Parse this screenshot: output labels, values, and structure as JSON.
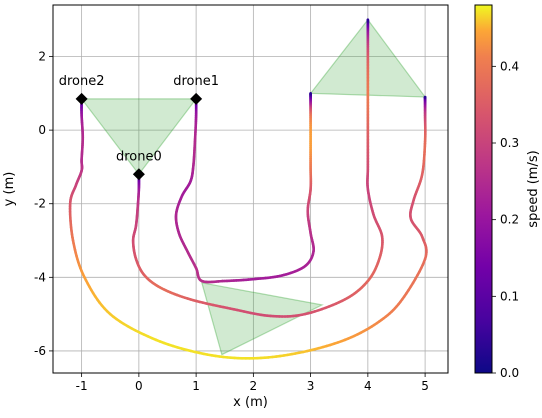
{
  "chart_data": {
    "type": "line",
    "xlabel": "x (m)",
    "ylabel": "y (m)",
    "xlim": [
      -1.5,
      5.4
    ],
    "ylim": [
      -6.6,
      3.4
    ],
    "xticks": [
      -1,
      0,
      1,
      2,
      3,
      4,
      5
    ],
    "yticks": [
      -6,
      -4,
      -2,
      0,
      2
    ],
    "grid": true,
    "colorbar": {
      "label": "speed (m/s)",
      "range": [
        0.0,
        0.48
      ],
      "ticks": [
        "0.0",
        "0.1",
        "0.2",
        "0.3",
        "0.4"
      ],
      "tick_values": [
        0.0,
        0.1,
        0.2,
        0.3,
        0.4
      ],
      "colormap": "plasma"
    },
    "drones": [
      {
        "name": "drone0",
        "x": 0.0,
        "y": -1.2
      },
      {
        "name": "drone1",
        "x": 1.0,
        "y": 0.85
      },
      {
        "name": "drone2",
        "x": -1.0,
        "y": 0.85
      }
    ],
    "formations": [
      [
        [
          -1.0,
          0.85
        ],
        [
          1.0,
          0.85
        ],
        [
          0.0,
          -1.2
        ]
      ],
      [
        [
          1.1,
          -4.15
        ],
        [
          3.2,
          -4.75
        ],
        [
          1.45,
          -6.1
        ]
      ],
      [
        [
          3.0,
          1.0
        ],
        [
          4.0,
          3.0
        ],
        [
          5.0,
          0.9
        ]
      ]
    ],
    "trajectories": [
      {
        "name": "drone0",
        "points": [
          [
            0.0,
            -1.2,
            0.05
          ],
          [
            0.0,
            -1.6,
            0.2
          ],
          [
            -0.02,
            -2.1,
            0.28
          ],
          [
            -0.05,
            -2.6,
            0.3
          ],
          [
            -0.1,
            -3.0,
            0.32
          ],
          [
            -0.05,
            -3.5,
            0.34
          ],
          [
            0.1,
            -3.95,
            0.36
          ],
          [
            0.4,
            -4.3,
            0.38
          ],
          [
            0.9,
            -4.6,
            0.36
          ],
          [
            1.6,
            -4.85,
            0.33
          ],
          [
            2.3,
            -5.05,
            0.32
          ],
          [
            2.9,
            -5.0,
            0.33
          ],
          [
            3.6,
            -4.6,
            0.35
          ],
          [
            4.0,
            -4.1,
            0.37
          ],
          [
            4.2,
            -3.5,
            0.36
          ],
          [
            4.25,
            -2.9,
            0.34
          ],
          [
            4.1,
            -2.3,
            0.32
          ],
          [
            4.0,
            -1.6,
            0.3
          ],
          [
            4.0,
            -1.0,
            0.32
          ],
          [
            4.0,
            0.0,
            0.36
          ],
          [
            4.0,
            1.0,
            0.4
          ],
          [
            4.0,
            2.0,
            0.35
          ],
          [
            4.0,
            2.7,
            0.2
          ],
          [
            4.0,
            3.0,
            0.03
          ]
        ]
      },
      {
        "name": "drone1",
        "points": [
          [
            1.0,
            0.85,
            0.05
          ],
          [
            1.0,
            0.4,
            0.2
          ],
          [
            0.98,
            -0.3,
            0.25
          ],
          [
            0.95,
            -1.0,
            0.24
          ],
          [
            0.9,
            -1.4,
            0.22
          ],
          [
            0.75,
            -1.8,
            0.22
          ],
          [
            0.65,
            -2.3,
            0.24
          ],
          [
            0.7,
            -2.8,
            0.24
          ],
          [
            0.85,
            -3.3,
            0.25
          ],
          [
            1.0,
            -3.75,
            0.26
          ],
          [
            1.1,
            -4.1,
            0.26
          ],
          [
            1.5,
            -4.1,
            0.24
          ],
          [
            2.0,
            -4.05,
            0.22
          ],
          [
            2.5,
            -3.95,
            0.22
          ],
          [
            2.9,
            -3.7,
            0.23
          ],
          [
            3.05,
            -3.3,
            0.24
          ],
          [
            3.0,
            -2.8,
            0.26
          ],
          [
            2.95,
            -2.2,
            0.3
          ],
          [
            3.0,
            -1.6,
            0.34
          ],
          [
            3.0,
            -1.0,
            0.4
          ],
          [
            3.0,
            -0.3,
            0.44
          ],
          [
            3.0,
            0.4,
            0.4
          ],
          [
            3.0,
            0.8,
            0.2
          ],
          [
            3.0,
            1.0,
            0.03
          ]
        ]
      },
      {
        "name": "drone2",
        "points": [
          [
            -1.0,
            0.85,
            0.05
          ],
          [
            -1.0,
            0.4,
            0.2
          ],
          [
            -0.98,
            -0.2,
            0.25
          ],
          [
            -1.0,
            -0.8,
            0.25
          ],
          [
            -1.0,
            -1.1,
            0.27
          ],
          [
            -1.1,
            -1.5,
            0.3
          ],
          [
            -1.2,
            -2.0,
            0.34
          ],
          [
            -1.15,
            -3.0,
            0.4
          ],
          [
            -0.95,
            -4.0,
            0.44
          ],
          [
            -0.5,
            -5.0,
            0.46
          ],
          [
            0.3,
            -5.7,
            0.47
          ],
          [
            1.2,
            -6.1,
            0.47
          ],
          [
            2.0,
            -6.2,
            0.47
          ],
          [
            2.8,
            -6.05,
            0.46
          ],
          [
            3.6,
            -5.7,
            0.44
          ],
          [
            4.2,
            -5.2,
            0.42
          ],
          [
            4.6,
            -4.6,
            0.4
          ],
          [
            5.0,
            -3.5,
            0.38
          ],
          [
            4.95,
            -2.9,
            0.35
          ],
          [
            4.75,
            -2.4,
            0.33
          ],
          [
            4.8,
            -1.9,
            0.33
          ],
          [
            4.95,
            -1.2,
            0.36
          ],
          [
            5.0,
            -0.3,
            0.38
          ],
          [
            5.0,
            0.4,
            0.3
          ],
          [
            5.0,
            0.8,
            0.15
          ],
          [
            5.0,
            0.9,
            0.03
          ]
        ]
      }
    ]
  }
}
